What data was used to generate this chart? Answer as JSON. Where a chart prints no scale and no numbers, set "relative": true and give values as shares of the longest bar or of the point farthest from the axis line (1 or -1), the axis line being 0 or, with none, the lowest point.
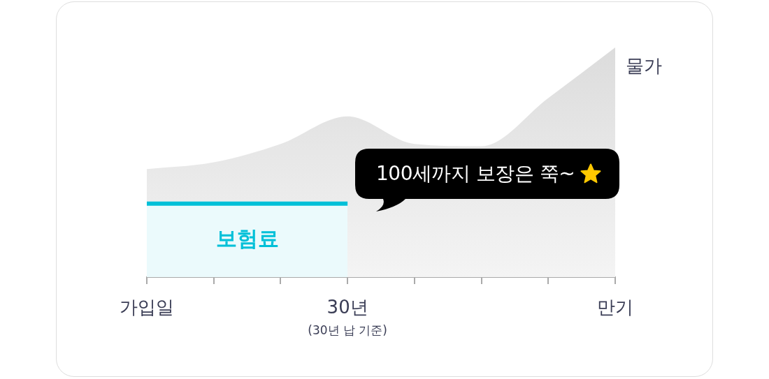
{
  "chart_data": {
    "type": "area",
    "relative": true,
    "categories": [
      "가입일",
      null,
      null,
      "30년",
      null,
      null,
      null,
      "만기"
    ],
    "series": [
      {
        "name": "물가",
        "color": "#dcdcdc",
        "values": [
          0.47,
          0.5,
          0.58,
          0.7,
          0.58,
          0.57,
          0.78,
          1.0
        ]
      },
      {
        "name": "보험료",
        "color": "#00c0d8",
        "values": [
          0.32,
          0.32,
          0.32,
          0.32,
          null,
          null,
          null,
          null
        ]
      }
    ],
    "annotations": [
      "100세까지 보장은 쭉~",
      "(30년 납 기준)"
    ],
    "legend": false,
    "marker": "none"
  }
}
